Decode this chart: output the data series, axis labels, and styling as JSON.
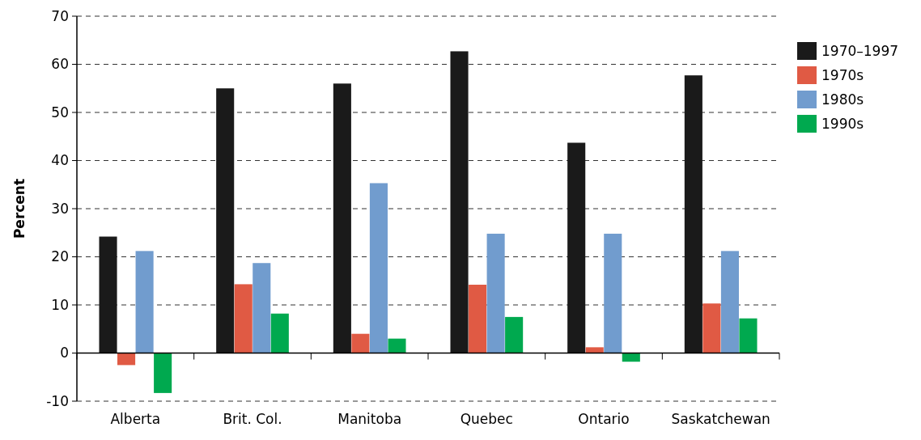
{
  "chart_data": {
    "type": "bar",
    "ylabel": "Percent",
    "categories": [
      "Alberta",
      "Brit. Col.",
      "Manitoba",
      "Quebec",
      "Ontario",
      "Saskatchewan"
    ],
    "series": [
      {
        "name": "1970–1997",
        "color": "#1a1a1a",
        "values": [
          24.2,
          55,
          56,
          62.7,
          43.7,
          57.7
        ]
      },
      {
        "name": "1970s",
        "color": "#e05a44",
        "values": [
          -2.5,
          14.3,
          4,
          14.2,
          1.2,
          10.3
        ]
      },
      {
        "name": "1980s",
        "color": "#719cce",
        "values": [
          21.2,
          18.7,
          35.3,
          24.8,
          24.8,
          21.2
        ]
      },
      {
        "name": "1990s",
        "color": "#00a94f",
        "values": [
          -8.3,
          8.2,
          3,
          7.5,
          -1.8,
          7.2
        ]
      }
    ],
    "ylim": [
      -10,
      70
    ],
    "yticks": [
      -10,
      0,
      10,
      20,
      30,
      40,
      50,
      60,
      70
    ],
    "grid": "y",
    "legend": "right"
  }
}
